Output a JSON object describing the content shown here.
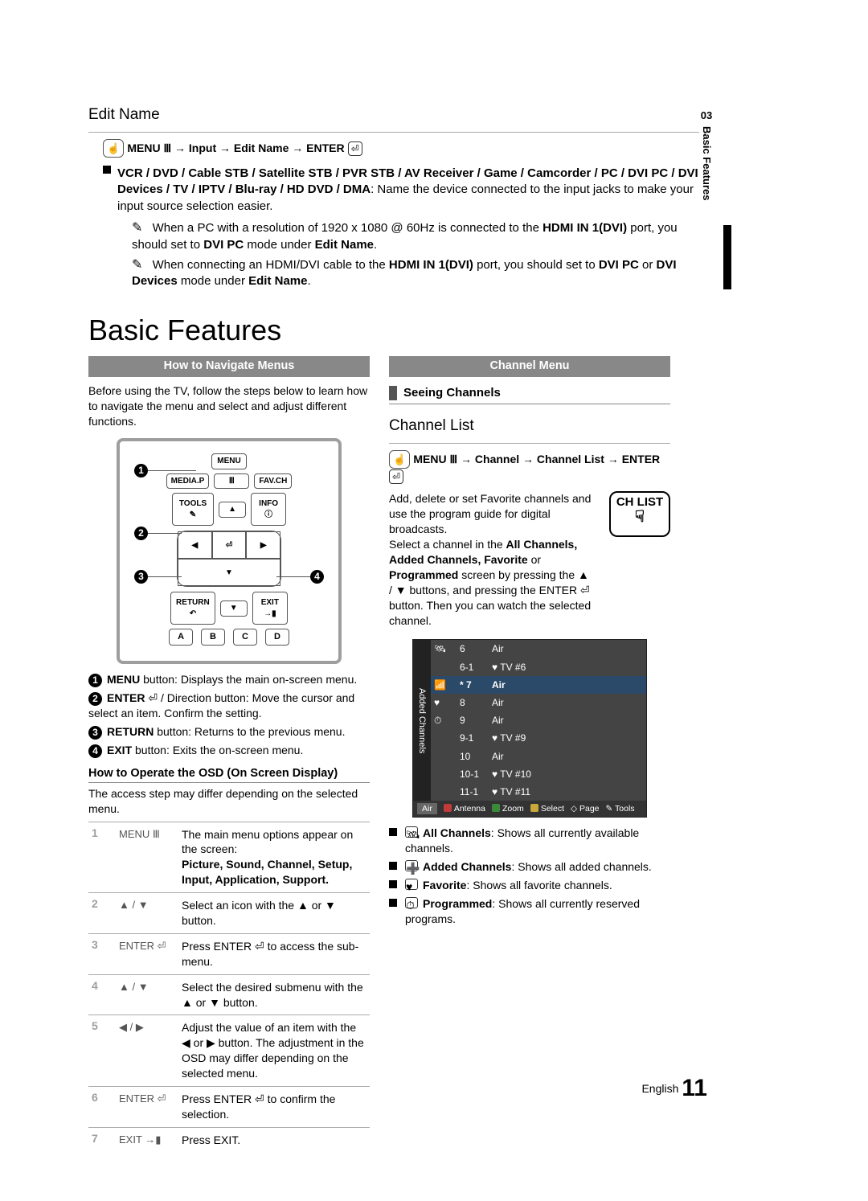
{
  "side": {
    "num": "03",
    "label": "Basic Features"
  },
  "editName": {
    "title": "Edit Name",
    "path": "MENU Ⅲ → Input → Edit Name → ENTER",
    "bulletPrefix": "VCR / DVD / Cable STB / Satellite STB / PVR STB / AV Receiver / Game / Camcorder / PC / DVI PC / DVI Devices / TV / IPTV / Blu-ray / HD DVD / DMA",
    "bulletBody": ": Name the device connected to the input jacks to make your input source selection easier.",
    "note1a": "When a PC with a resolution of 1920 x 1080 @ 60Hz is connected to the ",
    "note1b": "HDMI IN 1(DVI)",
    "note1c": " port, you should set to ",
    "note1d": "DVI PC",
    "note1e": " mode under ",
    "note1f": "Edit Name",
    "note2a": "When connecting an HDMI/DVI cable to the ",
    "note2b": "HDMI IN 1(DVI)",
    "note2c": " port, you should set to ",
    "note2d": "DVI PC",
    "note2e": " or ",
    "note2f": "DVI Devices",
    "note2g": " mode under ",
    "note2h": "Edit Name"
  },
  "basic": {
    "title": "Basic Features",
    "leftBand": "How to Navigate Menus",
    "leftIntro": "Before using the TV, follow the steps below to learn how to navigate the menu and select and adjust different functions.",
    "remote": {
      "menu": "MENU",
      "media": "MEDIA.P",
      "mbtn": "Ⅲ",
      "fav": "FAV.CH",
      "tools": "TOOLS",
      "info": "INFO",
      "return": "RETURN",
      "exit": "EXIT",
      "a": "A",
      "b": "B",
      "c": "C",
      "d": "D"
    },
    "callouts": [
      {
        "n": "1",
        "t": "MENU button: Displays the main on-screen menu."
      },
      {
        "n": "2",
        "t": "ENTER ⏎ / Direction button: Move the cursor and select an item. Confirm the setting."
      },
      {
        "n": "3",
        "t": "RETURN button: Returns to the previous menu."
      },
      {
        "n": "4",
        "t": "EXIT button: Exits the on-screen menu."
      }
    ],
    "osdTitle": "How to Operate the OSD (On Screen Display)",
    "osdNote": "The access step may differ depending on the selected menu.",
    "steps": [
      {
        "n": "1",
        "k": "MENU Ⅲ",
        "d": "The main menu options appear on the screen:",
        "d2": "Picture, Sound, Channel, Setup, Input, Application, Support."
      },
      {
        "n": "2",
        "k": "▲ / ▼",
        "d": "Select an icon with the ▲ or ▼ button."
      },
      {
        "n": "3",
        "k": "ENTER ⏎",
        "d": "Press ENTER ⏎ to access the sub-menu."
      },
      {
        "n": "4",
        "k": "▲ / ▼",
        "d": "Select the desired submenu with the ▲ or ▼ button."
      },
      {
        "n": "5",
        "k": "◀ / ▶",
        "d": "Adjust the value of an item with the ◀ or ▶ button. The adjustment in the OSD may differ depending on the selected menu."
      },
      {
        "n": "6",
        "k": "ENTER ⏎",
        "d": "Press ENTER ⏎ to confirm the selection."
      },
      {
        "n": "7",
        "k": "EXIT →▮",
        "d": "Press EXIT."
      }
    ],
    "rightBand": "Channel Menu",
    "seeing": "Seeing Channels",
    "chTitle": "Channel List",
    "chPath": "MENU Ⅲ → Channel → Channel List → ENTER",
    "chIntro1": "Add, delete or set Favorite channels and use the program guide for digital broadcasts.",
    "chIntro2a": "Select a channel in the ",
    "chIntro2b": "All Channels, Added Channels, Favorite",
    "chIntro2c": " or ",
    "chIntro2d": "Programmed",
    "chIntro2e": " screen by pressing the ▲ / ▼ buttons, and pressing the ENTER ⏎ button. Then you can watch the selected channel.",
    "chlistBadge": "CH LIST",
    "panel": {
      "side": "Added Channels",
      "rows": [
        {
          "ch": "6",
          "name": "Air",
          "icon": "🛰"
        },
        {
          "ch": "6-1",
          "name": "♥ TV #6",
          "icon": ""
        },
        {
          "ch": "7",
          "name": "Air",
          "icon": "📶",
          "hl": true,
          "star": "*"
        },
        {
          "ch": "8",
          "name": "Air",
          "icon": "♥"
        },
        {
          "ch": "9",
          "name": "Air",
          "icon": "⏱"
        },
        {
          "ch": "9-1",
          "name": "♥ TV #9",
          "icon": ""
        },
        {
          "ch": "10",
          "name": "Air",
          "icon": ""
        },
        {
          "ch": "10-1",
          "name": "♥ TV #10",
          "icon": ""
        },
        {
          "ch": "11-1",
          "name": "♥ TV #11",
          "icon": ""
        }
      ],
      "footer": {
        "air": "Air",
        "a": "Antenna",
        "b": "Zoom",
        "c": "Select",
        "page": "◇ Page",
        "tools": "✎ Tools"
      },
      "colors": {
        "a": "#c23a3a",
        "b": "#3a8a3a",
        "c": "#c8a83a"
      }
    },
    "chBullets": [
      {
        "icon": "🛰",
        "b": "All Channels",
        "t": ": Shows all currently available channels."
      },
      {
        "icon": "➕",
        "b": "Added Channels",
        "t": ": Shows all added channels."
      },
      {
        "icon": "♥",
        "b": "Favorite",
        "t": ": Shows all favorite channels."
      },
      {
        "icon": "⏱",
        "b": "Programmed",
        "t": ": Shows all currently reserved programs."
      }
    ]
  },
  "footer": {
    "lang": "English",
    "page": "11"
  }
}
